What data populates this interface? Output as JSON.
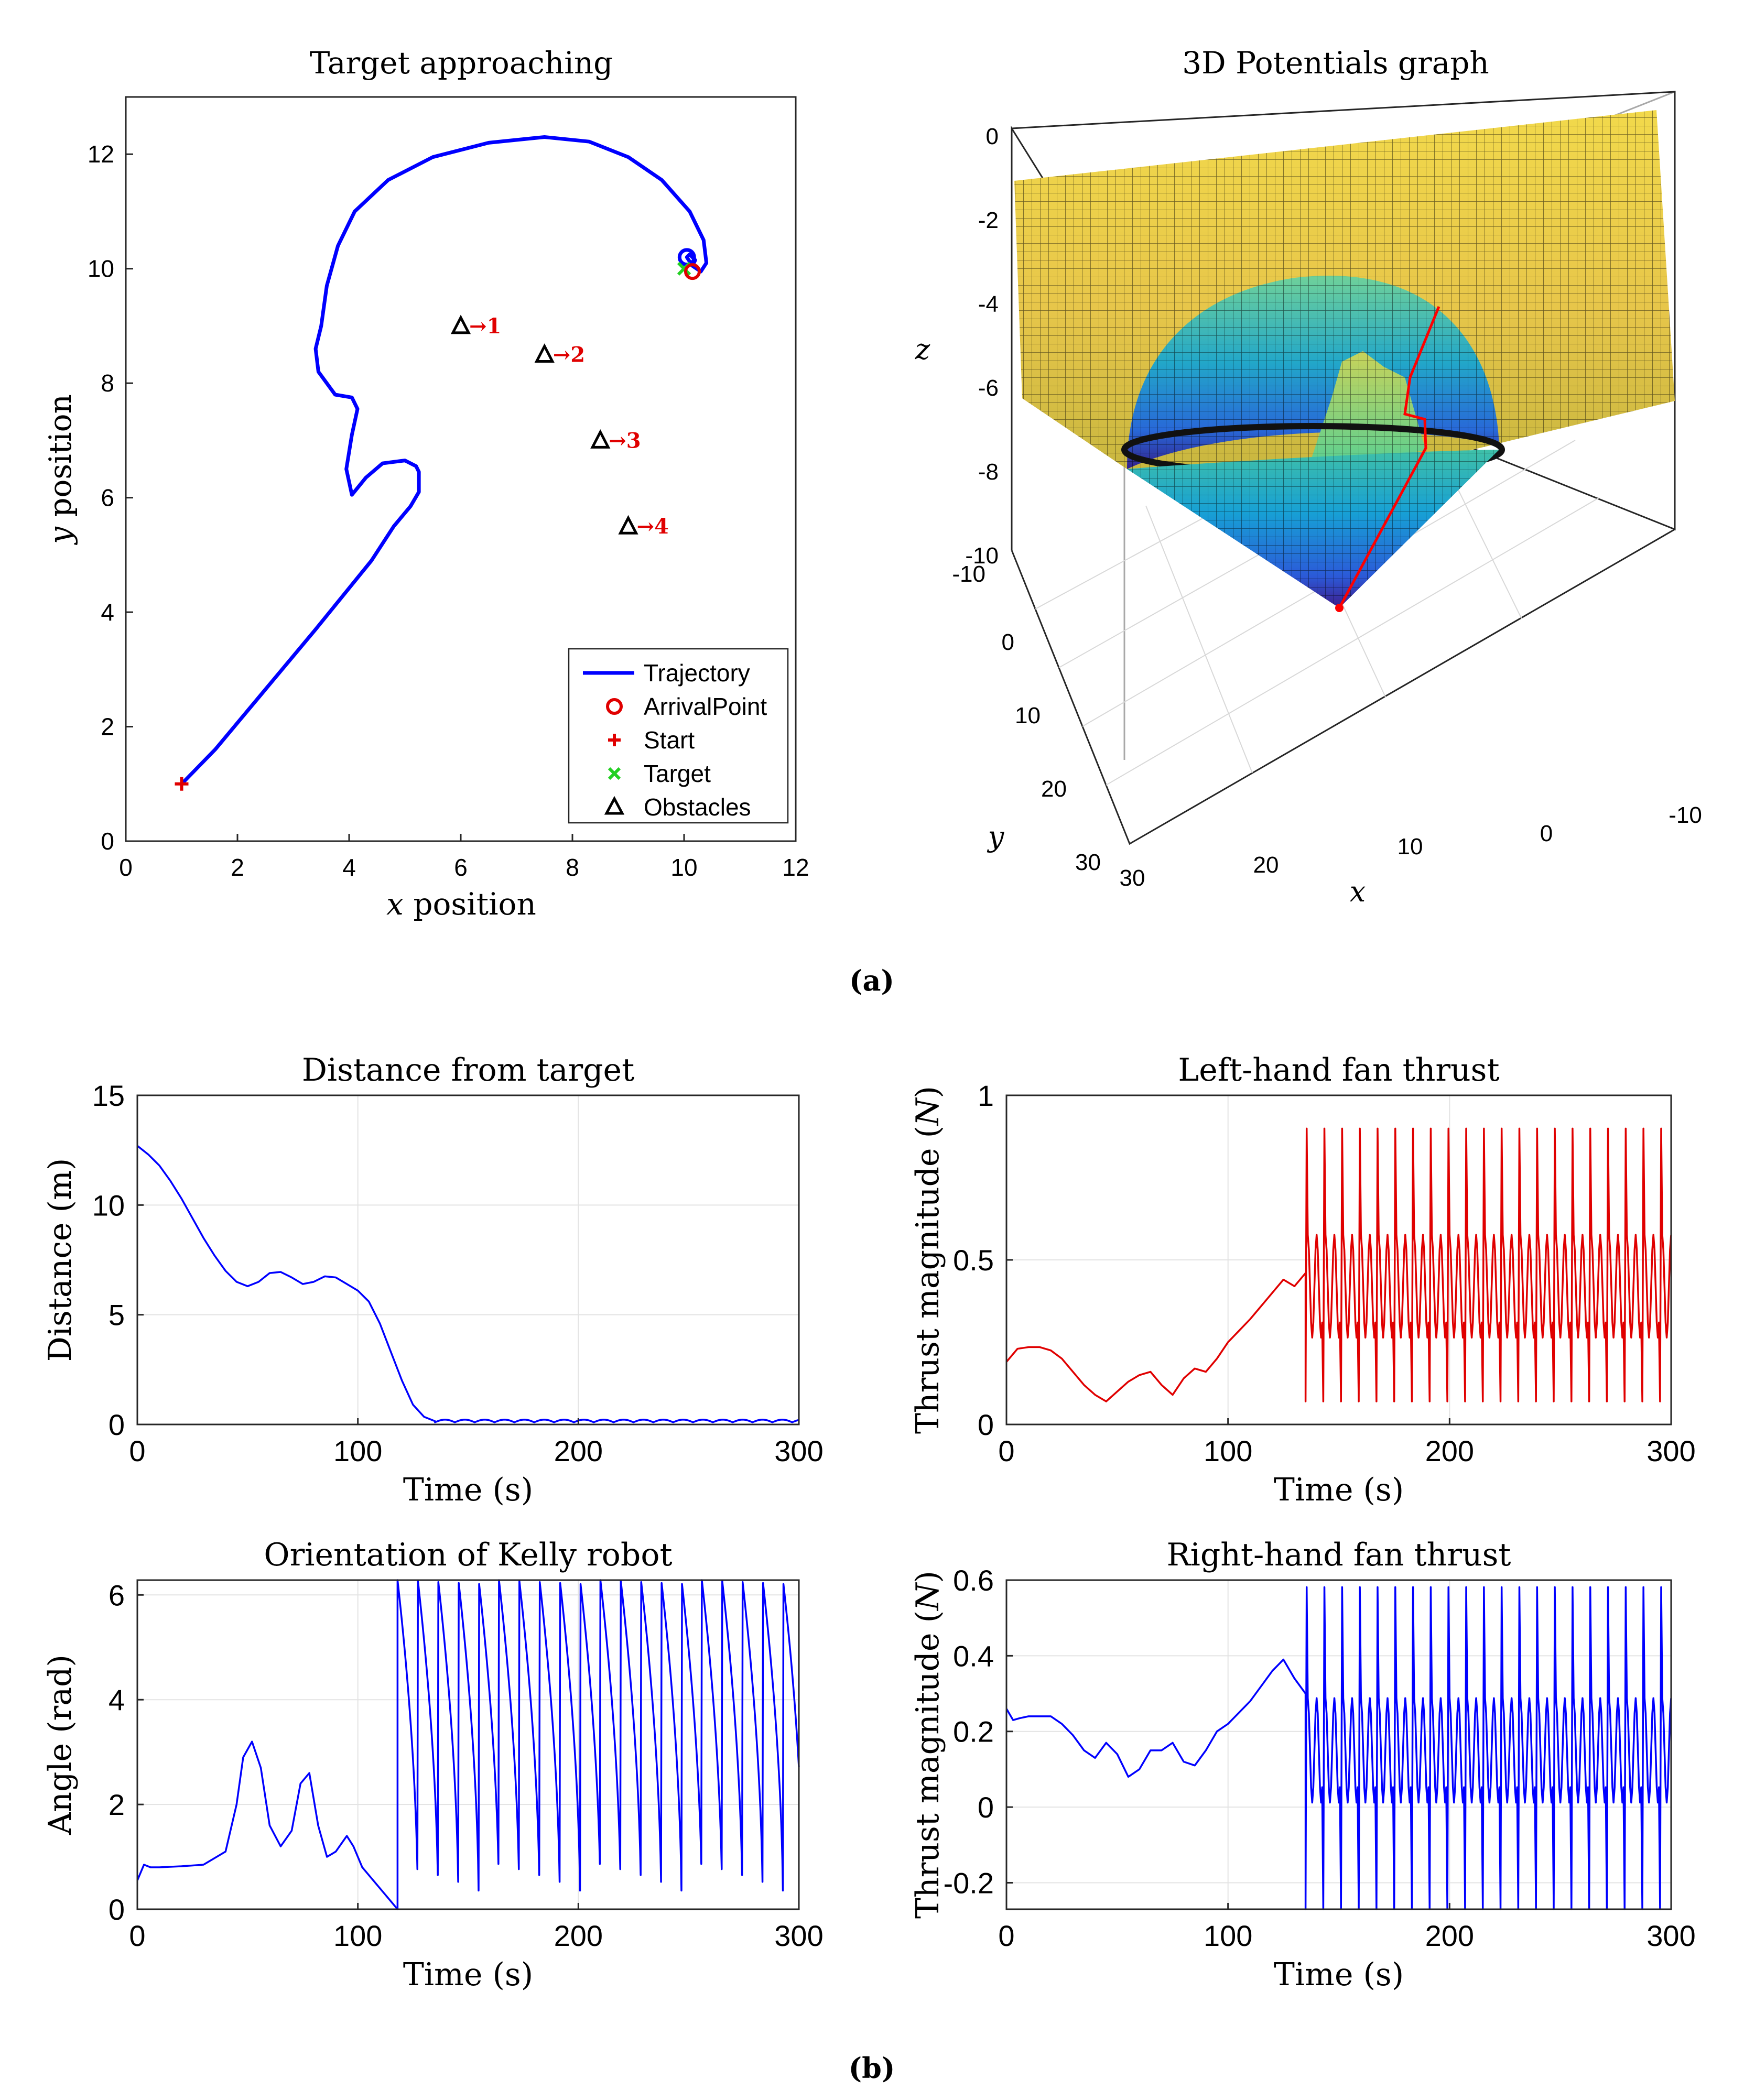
{
  "figure_labels": {
    "a": "(a)",
    "b": "(b)"
  },
  "chart_data": [
    {
      "id": "target",
      "type": "line",
      "title": "Target approaching",
      "xlabel_var": "x",
      "xlabel_rest": " position",
      "ylabel_var": "y",
      "ylabel_rest": " position",
      "xlim": [
        0,
        12
      ],
      "ylim": [
        0,
        13
      ],
      "xticks": [
        0,
        2,
        4,
        6,
        8,
        10,
        12
      ],
      "yticks": [
        0,
        2,
        4,
        6,
        8,
        10,
        12
      ],
      "grid": false,
      "trajectory": {
        "x": [
          1.0,
          1.6,
          2.2,
          2.8,
          3.4,
          3.9,
          4.4,
          4.8,
          5.1,
          5.25,
          5.25,
          5.2,
          5.0,
          4.6,
          4.3,
          4.05,
          3.95,
          4.05,
          4.15,
          4.05,
          3.75,
          3.45,
          3.4,
          3.5,
          3.6,
          3.8,
          4.1,
          4.7,
          5.5,
          6.5,
          7.5,
          8.3,
          9.0,
          9.6,
          10.1,
          10.35,
          10.4,
          10.3,
          10.15,
          10.05,
          10.1,
          10.2,
          10.15
        ],
        "y": [
          1.0,
          1.6,
          2.3,
          3.0,
          3.7,
          4.3,
          4.9,
          5.5,
          5.85,
          6.1,
          6.45,
          6.55,
          6.65,
          6.6,
          6.35,
          6.05,
          6.5,
          7.1,
          7.55,
          7.75,
          7.8,
          8.2,
          8.6,
          9.0,
          9.7,
          10.4,
          11.0,
          11.55,
          11.95,
          12.2,
          12.3,
          12.22,
          11.95,
          11.55,
          11.0,
          10.5,
          10.1,
          9.95,
          10.05,
          10.2,
          10.25,
          10.15,
          10.05
        ]
      },
      "start": [
        1,
        1
      ],
      "target_pt": [
        10,
        10
      ],
      "arrival": [
        10.15,
        9.95
      ],
      "obstacles": [
        {
          "x": 6,
          "y": 9,
          "label": "→1"
        },
        {
          "x": 7.5,
          "y": 8.5,
          "label": "→2"
        },
        {
          "x": 8.5,
          "y": 7,
          "label": "→3"
        },
        {
          "x": 9,
          "y": 5.5,
          "label": "→4"
        }
      ],
      "legend": [
        "Trajectory",
        "ArrivalPoint",
        "Start",
        "Target",
        "Obstacles"
      ],
      "legend_position": "bottom-right",
      "colors": {
        "trajectory": "#0000ff",
        "start": "#e00000",
        "arrival": "#e00000",
        "target": "#22d022",
        "obstacle": "#000000",
        "obstacle_label": "#e00000"
      }
    },
    {
      "id": "potential3d",
      "type": "surface",
      "title": "3D Potentials graph",
      "xlabel": "x",
      "ylabel": "y",
      "zlabel": "z",
      "xlim": [
        -10,
        30
      ],
      "ylim": [
        -10,
        30
      ],
      "zlim": [
        -10,
        0
      ],
      "xticks": [
        "30",
        "20",
        "10",
        "0",
        "-10"
      ],
      "yticks": [
        "-10",
        "0",
        "10",
        "20",
        "30"
      ],
      "zticks": [
        "0",
        "-2",
        "-4",
        "-6",
        "-8",
        "-10"
      ],
      "colormap": "parula",
      "path_color": "#ff0000"
    },
    {
      "id": "distance",
      "type": "line",
      "title": "Distance from target",
      "xlabel": "Time (s)",
      "ylabel": "Distance (m)",
      "xlim": [
        0,
        300
      ],
      "ylim": [
        0,
        15
      ],
      "xticks": [
        0,
        100,
        200,
        300
      ],
      "yticks": [
        0,
        5,
        10,
        15
      ],
      "grid": true,
      "color": "#0000ff",
      "x": [
        0,
        5,
        10,
        15,
        20,
        25,
        30,
        35,
        40,
        45,
        50,
        55,
        60,
        65,
        70,
        75,
        80,
        85,
        90,
        95,
        100,
        105,
        110,
        115,
        120,
        125,
        130,
        135
      ],
      "y": [
        12.7,
        12.3,
        11.8,
        11.1,
        10.3,
        9.4,
        8.5,
        7.7,
        7.0,
        6.5,
        6.3,
        6.5,
        6.9,
        6.95,
        6.7,
        6.4,
        6.5,
        6.75,
        6.7,
        6.4,
        6.1,
        5.6,
        4.6,
        3.3,
        2.0,
        0.9,
        0.35,
        0.15
      ],
      "steady": {
        "from": 135,
        "to": 300,
        "base": 0.1,
        "amp": 0.12,
        "period": 9
      }
    },
    {
      "id": "leftfan",
      "type": "line",
      "title": "Left-hand fan thrust",
      "xlabel": "Time (s)",
      "ylabel_pre": "Thrust magnitude (",
      "ylabel_var": "N",
      "ylabel_post": ")",
      "xlim": [
        0,
        300
      ],
      "ylim": [
        0,
        1
      ],
      "xticks": [
        0,
        100,
        200,
        300
      ],
      "yticks": [
        "0",
        "0.5",
        "1"
      ],
      "grid": true,
      "color": "#e00000",
      "x": [
        0,
        5,
        10,
        15,
        20,
        25,
        30,
        35,
        40,
        45,
        50,
        55,
        60,
        65,
        70,
        75,
        80,
        85,
        90,
        95,
        100,
        110,
        120,
        125,
        130,
        135
      ],
      "y": [
        0.19,
        0.23,
        0.235,
        0.235,
        0.225,
        0.2,
        0.16,
        0.12,
        0.09,
        0.07,
        0.1,
        0.13,
        0.15,
        0.16,
        0.12,
        0.09,
        0.14,
        0.17,
        0.16,
        0.2,
        0.25,
        0.32,
        0.4,
        0.44,
        0.42,
        0.46
      ],
      "steady": {
        "from": 135,
        "to": 300,
        "base": 0.42,
        "amp": 0.26,
        "period": 8,
        "spike": 0.92,
        "dip": 0.07
      }
    },
    {
      "id": "orientation",
      "type": "line",
      "title": "Orientation of Kelly robot",
      "xlabel": "Time (s)",
      "ylabel": "Angle (rad)",
      "xlim": [
        0,
        300
      ],
      "ylim": [
        0,
        6.283
      ],
      "xticks": [
        0,
        100,
        200,
        300
      ],
      "yticks": [
        0,
        2,
        4,
        6
      ],
      "grid": true,
      "color": "#0000ff",
      "x": [
        0,
        3,
        6,
        10,
        20,
        30,
        40,
        45,
        48,
        52,
        56,
        60,
        65,
        70,
        74,
        78,
        82,
        86,
        90,
        95,
        98,
        102,
        110,
        118
      ],
      "y": [
        0.55,
        0.85,
        0.8,
        0.8,
        0.82,
        0.85,
        1.1,
        2.0,
        2.9,
        3.2,
        2.7,
        1.6,
        1.2,
        1.5,
        2.4,
        2.6,
        1.6,
        1.0,
        1.1,
        1.4,
        1.2,
        0.8,
        0.4,
        0.0
      ],
      "wrap": {
        "from": 118,
        "to": 300,
        "period": 9.2
      }
    },
    {
      "id": "rightfan",
      "type": "line",
      "title": "Right-hand fan thrust",
      "xlabel": "Time (s)",
      "ylabel_pre": "Thrust magnitude (",
      "ylabel_var": "N",
      "ylabel_post": ")",
      "xlim": [
        0,
        300
      ],
      "ylim": [
        -0.27,
        0.6
      ],
      "xticks": [
        0,
        100,
        200,
        300
      ],
      "yticks": [
        "-0.2",
        "0",
        "0.2",
        "0.4",
        "0.6"
      ],
      "grid": true,
      "color": "#0000ff",
      "x": [
        0,
        3,
        6,
        10,
        20,
        25,
        30,
        35,
        40,
        45,
        50,
        55,
        60,
        65,
        70,
        75,
        80,
        85,
        90,
        95,
        100,
        110,
        120,
        125,
        130,
        135
      ],
      "y": [
        0.26,
        0.23,
        0.235,
        0.24,
        0.24,
        0.22,
        0.19,
        0.15,
        0.13,
        0.17,
        0.14,
        0.08,
        0.1,
        0.15,
        0.15,
        0.17,
        0.12,
        0.11,
        0.15,
        0.2,
        0.22,
        0.28,
        0.36,
        0.39,
        0.34,
        0.3
      ],
      "steady": {
        "from": 135,
        "to": 300,
        "base": 0.15,
        "amp": 0.23,
        "period": 8,
        "spike": 0.6,
        "dip": -0.27
      }
    }
  ]
}
